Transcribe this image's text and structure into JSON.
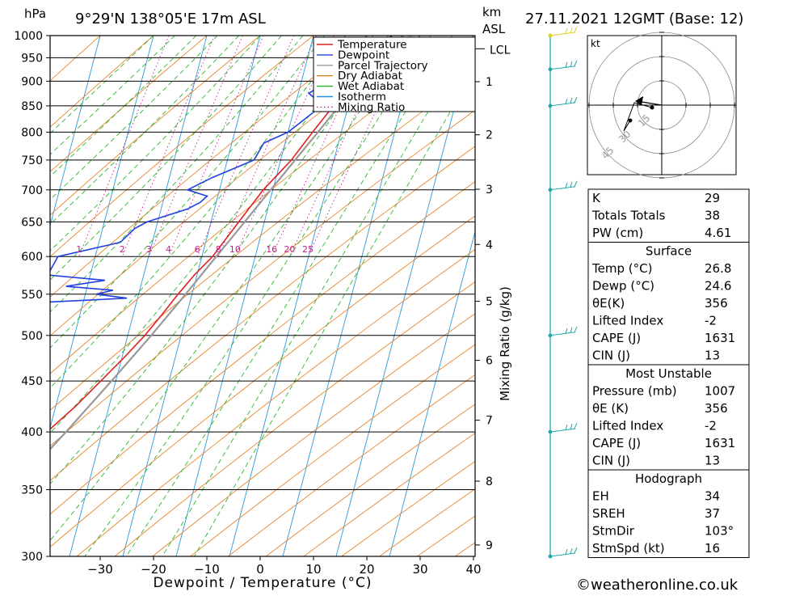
{
  "header": {
    "hpa_label": "hPa",
    "location": "9°29'N  138°05'E  17m  ASL",
    "km_label": "km",
    "asl_label": "ASL",
    "datetime": "27.11.2021  12GMT  (Base: 12)"
  },
  "chart_data": {
    "type": "line",
    "title": "9°29'N  138°05'E  17m  ASL",
    "xlabel": "Dewpoint / Temperature (°C)",
    "ylabel": "hPa",
    "xlim": [
      -40,
      40
    ],
    "ylim": [
      1000,
      300
    ],
    "yscale": "log",
    "skew": true,
    "x_ticks": [
      -30,
      -20,
      -10,
      0,
      10,
      20,
      30,
      40
    ],
    "pressure_ticks": [
      300,
      350,
      400,
      450,
      500,
      550,
      600,
      650,
      700,
      750,
      800,
      850,
      900,
      950,
      1000
    ],
    "km_axis": {
      "ticks": [
        {
          "km": 1,
          "p": 899
        },
        {
          "km": 2,
          "p": 795
        },
        {
          "km": 3,
          "p": 701
        },
        {
          "km": 4,
          "p": 617
        },
        {
          "km": 5,
          "p": 541
        },
        {
          "km": 6,
          "p": 472
        },
        {
          "km": 7,
          "p": 411
        },
        {
          "km": 8,
          "p": 357
        },
        {
          "km": 9,
          "p": 308
        }
      ],
      "lcl_label": "LCL",
      "lcl_p": 970
    },
    "mixing_ratio_label": "Mixing Ratio (g/kg)",
    "mixing_ratio_values": [
      1,
      2,
      3,
      4,
      6,
      8,
      10,
      16,
      20,
      25
    ],
    "legend": {
      "placement": "top-right",
      "entries": [
        {
          "name": "Temperature",
          "color": "#e02020"
        },
        {
          "name": "Dewpoint",
          "color": "#2040e0"
        },
        {
          "name": "Parcel Trajectory",
          "color": "#999999"
        },
        {
          "name": "Dry Adiabat",
          "color": "#e08020"
        },
        {
          "name": "Wet Adiabat",
          "color": "#20b020"
        },
        {
          "name": "Isotherm",
          "color": "#2090e0"
        },
        {
          "name": "Mixing Ratio",
          "color": "#c0208c"
        }
      ]
    },
    "series": [
      {
        "name": "Temperature",
        "color": "#e02020",
        "points": [
          [
            1000,
            26.8
          ],
          [
            975,
            25.0
          ],
          [
            950,
            23.5
          ],
          [
            925,
            21.8
          ],
          [
            900,
            20.2
          ],
          [
            875,
            18.6
          ],
          [
            850,
            17.2
          ],
          [
            800,
            14.6
          ],
          [
            750,
            12.0
          ],
          [
            700,
            8.2
          ],
          [
            650,
            5.2
          ],
          [
            600,
            2.0
          ],
          [
            575,
            -0.5
          ],
          [
            550,
            -2.6
          ],
          [
            525,
            -4.6
          ],
          [
            500,
            -6.8
          ],
          [
            475,
            -9.6
          ],
          [
            450,
            -12.8
          ],
          [
            425,
            -16.2
          ],
          [
            400,
            -20.4
          ],
          [
            375,
            -25.0
          ]
        ]
      },
      {
        "name": "Dewpoint",
        "color": "#2040e0",
        "points": [
          [
            1000,
            24.6
          ],
          [
            975,
            23.4
          ],
          [
            950,
            22.0
          ],
          [
            925,
            20.0
          ],
          [
            900,
            15.0
          ],
          [
            875,
            12.0
          ],
          [
            860,
            14.0
          ],
          [
            850,
            15.0
          ],
          [
            800,
            10.0
          ],
          [
            780,
            6.0
          ],
          [
            750,
            5.0
          ],
          [
            720,
            -2.0
          ],
          [
            700,
            -6.0
          ],
          [
            690,
            -2.0
          ],
          [
            680,
            -3.0
          ],
          [
            670,
            -5.0
          ],
          [
            650,
            -12.0
          ],
          [
            640,
            -14.0
          ],
          [
            620,
            -16.0
          ],
          [
            600,
            -27.0
          ],
          [
            575,
            -28.0
          ],
          [
            568,
            -17.0
          ],
          [
            560,
            -24.0
          ],
          [
            555,
            -15.0
          ],
          [
            550,
            -18.0
          ],
          [
            545,
            -12.0
          ],
          [
            530,
            -57.0
          ],
          [
            520,
            -56.0
          ],
          [
            510,
            -37.0
          ],
          [
            500,
            -48.0
          ],
          [
            490,
            -42.0
          ],
          [
            460,
            -81.0
          ],
          [
            450,
            -60.0
          ],
          [
            400,
            -92.0
          ],
          [
            300,
            -104.0
          ],
          [
            300,
            -88.0
          ]
        ]
      },
      {
        "name": "Parcel Trajectory",
        "color": "#999999",
        "points": [
          [
            1000,
            26.8
          ],
          [
            970,
            24.4
          ],
          [
            950,
            23.4
          ],
          [
            900,
            20.9
          ],
          [
            850,
            18.3
          ],
          [
            800,
            15.6
          ],
          [
            750,
            12.7
          ],
          [
            700,
            9.6
          ],
          [
            650,
            6.3
          ],
          [
            600,
            2.7
          ],
          [
            550,
            -1.2
          ],
          [
            500,
            -5.6
          ],
          [
            450,
            -10.8
          ],
          [
            400,
            -16.8
          ],
          [
            370,
            -21.0
          ]
        ]
      }
    ],
    "wind_barbs_p": [
      300,
      400,
      500,
      700,
      850,
      925,
      1000
    ]
  },
  "hodograph": {
    "unit_label": "kt",
    "ring_labels": [
      "15",
      "30",
      "45"
    ]
  },
  "indices_table": {
    "top_rows": [
      {
        "label": "K",
        "value": "29"
      },
      {
        "label": "Totals Totals",
        "value": "38"
      },
      {
        "label": "PW (cm)",
        "value": "4.61"
      }
    ],
    "surface": {
      "title": "Surface",
      "rows": [
        {
          "label": "Temp (°C)",
          "value": "26.8"
        },
        {
          "label": "Dewp (°C)",
          "value": "24.6"
        },
        {
          "label": "θE(K)",
          "value": "356"
        },
        {
          "label": "Lifted Index",
          "value": "-2"
        },
        {
          "label": "CAPE (J)",
          "value": "1631"
        },
        {
          "label": "CIN (J)",
          "value": "13"
        }
      ]
    },
    "most_unstable": {
      "title": "Most Unstable",
      "rows": [
        {
          "label": "Pressure (mb)",
          "value": "1007"
        },
        {
          "label": "θE (K)",
          "value": "356"
        },
        {
          "label": "Lifted Index",
          "value": "-2"
        },
        {
          "label": "CAPE (J)",
          "value": "1631"
        },
        {
          "label": "CIN (J)",
          "value": "13"
        }
      ]
    },
    "hodograph": {
      "title": "Hodograph",
      "rows": [
        {
          "label": "EH",
          "value": "34"
        },
        {
          "label": "SREH",
          "value": "37"
        },
        {
          "label": "StmDir",
          "value": "103°"
        },
        {
          "label": "StmSpd (kt)",
          "value": "16"
        }
      ]
    }
  },
  "footer": {
    "copyright": "©weatheronline.co.uk"
  }
}
